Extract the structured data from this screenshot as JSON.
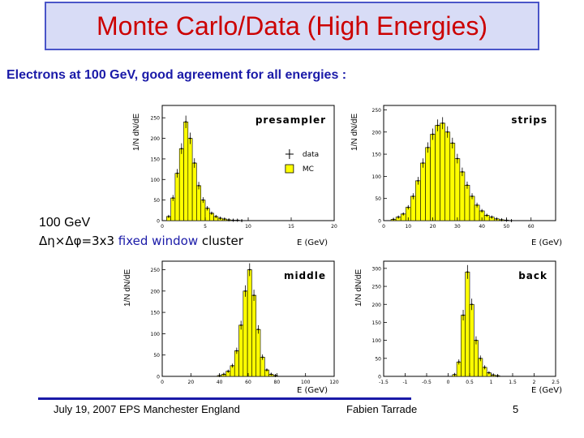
{
  "title": "Monte Carlo/Data (High Energies)",
  "subtitle": "Electrons at 100 GeV,  good agreement for  all energies :",
  "side": {
    "energy": "100 GeV",
    "cluster_prefix": "Δη×Δφ=3x3 ",
    "cluster_fixed": "fixed window",
    "cluster_suffix": " cluster"
  },
  "footer": {
    "date_place": "July 19, 2007  EPS Manchester England",
    "author": "Fabien Tarrade",
    "page": "5"
  },
  "colors": {
    "title": "#cc0000",
    "title_bg": "#d8dcf6",
    "accent": "#1a1aa8",
    "fill": "#ffff00"
  },
  "chart_data": [
    {
      "type": "bar",
      "name": "presampler",
      "ylabel": "1/N dN/dE",
      "xlabel": "E (GeV)",
      "xlim": [
        0,
        20
      ],
      "ylim": [
        0,
        280
      ],
      "xticks": [
        0,
        5,
        10,
        15,
        20
      ],
      "yticks": [
        0,
        50,
        100,
        150,
        200,
        250
      ],
      "legend": [
        {
          "label": "data",
          "marker": "cross"
        },
        {
          "label": "MC",
          "marker": "yellow-box"
        }
      ],
      "x": [
        0.75,
        1.25,
        1.75,
        2.25,
        2.75,
        3.25,
        3.75,
        4.25,
        4.75,
        5.25,
        5.75,
        6.25,
        6.75,
        7.25,
        7.75,
        8.25,
        8.75,
        9.25
      ],
      "values": [
        10,
        55,
        115,
        175,
        240,
        200,
        140,
        85,
        50,
        30,
        18,
        10,
        6,
        4,
        2,
        1,
        1,
        0
      ]
    },
    {
      "type": "bar",
      "name": "strips",
      "ylabel": "1/N dN/dE",
      "xlabel": "E (GeV)",
      "xlim": [
        0,
        70
      ],
      "ylim": [
        0,
        260
      ],
      "xticks": [
        0,
        10,
        20,
        30,
        40,
        50,
        60
      ],
      "yticks": [
        0,
        50,
        100,
        150,
        200,
        250
      ],
      "x": [
        4,
        6,
        8,
        10,
        12,
        14,
        16,
        18,
        20,
        22,
        24,
        26,
        28,
        30,
        32,
        34,
        36,
        38,
        40,
        42,
        44,
        46,
        48,
        50,
        52
      ],
      "values": [
        3,
        8,
        15,
        30,
        55,
        90,
        130,
        165,
        195,
        215,
        220,
        200,
        175,
        140,
        110,
        80,
        55,
        35,
        22,
        12,
        8,
        4,
        2,
        1,
        0
      ]
    },
    {
      "type": "bar",
      "name": "middle",
      "ylabel": "1/N dN/dE",
      "xlabel": "E (GeV)",
      "xlim": [
        0,
        120
      ],
      "ylim": [
        0,
        270
      ],
      "xticks": [
        0,
        20,
        40,
        60,
        80,
        100,
        120
      ],
      "yticks": [
        0,
        50,
        100,
        150,
        200,
        250
      ],
      "x": [
        40,
        43,
        46,
        49,
        52,
        55,
        58,
        61,
        64,
        67,
        70,
        73,
        76,
        79
      ],
      "values": [
        2,
        5,
        12,
        25,
        60,
        120,
        200,
        250,
        190,
        110,
        45,
        15,
        5,
        2
      ]
    },
    {
      "type": "bar",
      "name": "back",
      "ylabel": "1/N dN/dE",
      "xlabel": "E (GeV)",
      "xlim": [
        -1.5,
        2.5
      ],
      "ylim": [
        0,
        320
      ],
      "xticks": [
        -1.5,
        -1,
        -0.5,
        0,
        0.5,
        1,
        1.5,
        2,
        2.5
      ],
      "yticks": [
        0,
        50,
        100,
        150,
        200,
        250,
        300
      ],
      "x": [
        0.15,
        0.25,
        0.35,
        0.45,
        0.55,
        0.65,
        0.75,
        0.85,
        0.95,
        1.05,
        1.15
      ],
      "values": [
        5,
        40,
        170,
        290,
        200,
        100,
        50,
        25,
        10,
        4,
        2
      ]
    }
  ]
}
